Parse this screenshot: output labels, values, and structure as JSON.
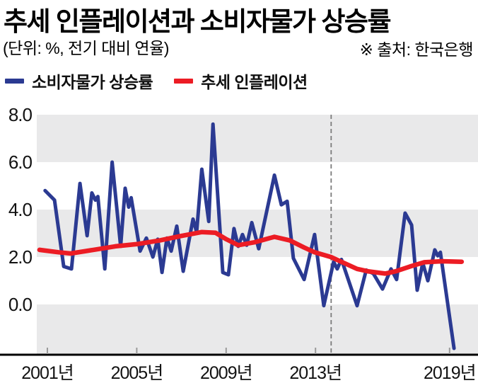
{
  "title": "추세 인플레이션과 소비자물가 상승률",
  "subtitle": "(단위: %, 전기 대비 연율)",
  "source": "※ 출처: 한국은행",
  "legend": [
    {
      "id": "cpi",
      "label": "소비자물가 상승률",
      "color": "#2b3a92"
    },
    {
      "id": "trend",
      "label": "추세 인플레이션",
      "color": "#ec1c24"
    }
  ],
  "chart_data": {
    "type": "line",
    "title": "추세 인플레이션과 소비자물가 상승률",
    "unit": "%",
    "note": "전기 대비 연율",
    "source": "한국은행",
    "x_range": [
      2000.6,
      2019.6
    ],
    "ylim": [
      -2.1,
      8.0
    ],
    "grid": "alternating horizontal bands",
    "legend_position": "top-left",
    "bands": [
      [
        8,
        6
      ],
      [
        4,
        2
      ],
      [
        0,
        -2.09
      ]
    ],
    "vline_year": 2013.7,
    "y_ticks": [
      {
        "value": 8,
        "label": "8.0"
      },
      {
        "value": 6,
        "label": "6.0"
      },
      {
        "value": 4,
        "label": "4.0"
      },
      {
        "value": 2,
        "label": "2.0"
      },
      {
        "value": 0,
        "label": "0.0"
      }
    ],
    "x_ticks": [
      {
        "year": 2001,
        "label": "2001년"
      },
      {
        "year": 2005,
        "label": "2005년"
      },
      {
        "year": 2009,
        "label": "2009년"
      },
      {
        "year": 2013,
        "label": "2013년"
      },
      {
        "year": 2019,
        "label": "2019년"
      }
    ],
    "colors": {
      "band": "#e9e9ea",
      "vline": "#7b7b7b",
      "axis": "#000000",
      "tick": "#9a9a9a"
    },
    "series": [
      {
        "id": "cpi",
        "name": "소비자물가 상승률",
        "color": "#2b3a92",
        "points": [
          [
            2000.9,
            4.8
          ],
          [
            2001.32,
            4.4
          ],
          [
            2001.73,
            1.6
          ],
          [
            2002.08,
            1.5
          ],
          [
            2002.46,
            5.1
          ],
          [
            2002.78,
            2.9
          ],
          [
            2002.99,
            4.7
          ],
          [
            2003.15,
            4.4
          ],
          [
            2003.26,
            4.55
          ],
          [
            2003.57,
            1.5
          ],
          [
            2003.9,
            6.0
          ],
          [
            2004.28,
            2.45
          ],
          [
            2004.48,
            4.9
          ],
          [
            2004.64,
            4.1
          ],
          [
            2004.75,
            4.5
          ],
          [
            2005.15,
            2.25
          ],
          [
            2005.43,
            2.8
          ],
          [
            2005.72,
            2.0
          ],
          [
            2005.94,
            2.75
          ],
          [
            2006.13,
            1.35
          ],
          [
            2006.35,
            2.8
          ],
          [
            2006.54,
            2.25
          ],
          [
            2006.79,
            3.3
          ],
          [
            2007.08,
            1.4
          ],
          [
            2007.52,
            3.6
          ],
          [
            2007.68,
            3.05
          ],
          [
            2007.91,
            5.7
          ],
          [
            2008.22,
            3.5
          ],
          [
            2008.41,
            7.6
          ],
          [
            2008.85,
            1.35
          ],
          [
            2009.1,
            1.25
          ],
          [
            2009.35,
            3.2
          ],
          [
            2009.54,
            2.45
          ],
          [
            2009.73,
            2.95
          ],
          [
            2009.92,
            2.5
          ],
          [
            2010.15,
            3.45
          ],
          [
            2010.46,
            2.35
          ],
          [
            2011.16,
            5.45
          ],
          [
            2011.47,
            4.2
          ],
          [
            2011.73,
            4.35
          ],
          [
            2012.01,
            1.95
          ],
          [
            2012.49,
            1.05
          ],
          [
            2012.96,
            2.95
          ],
          [
            2013.37,
            -0.05
          ],
          [
            2013.81,
            1.8
          ],
          [
            2013.97,
            1.5
          ],
          [
            2014.16,
            1.9
          ],
          [
            2014.86,
            -0.05
          ],
          [
            2015.27,
            1.45
          ],
          [
            2015.59,
            1.3
          ],
          [
            2016.0,
            0.65
          ],
          [
            2016.38,
            1.5
          ],
          [
            2016.63,
            1.05
          ],
          [
            2017.01,
            3.85
          ],
          [
            2017.3,
            3.35
          ],
          [
            2017.55,
            0.6
          ],
          [
            2017.8,
            1.75
          ],
          [
            2018.03,
            1.0
          ],
          [
            2018.34,
            2.3
          ],
          [
            2018.47,
            2.05
          ],
          [
            2018.59,
            2.2
          ],
          [
            2019.2,
            -1.85
          ]
        ]
      },
      {
        "id": "trend",
        "name": "추세 인플레이션",
        "color": "#ec1c24",
        "points": [
          [
            2000.65,
            2.3
          ],
          [
            2001.5,
            2.2
          ],
          [
            2002.04,
            2.15
          ],
          [
            2003.06,
            2.3
          ],
          [
            2004.04,
            2.45
          ],
          [
            2005.05,
            2.55
          ],
          [
            2006.03,
            2.7
          ],
          [
            2007.04,
            2.9
          ],
          [
            2007.9,
            3.05
          ],
          [
            2008.53,
            3.02
          ],
          [
            2009.01,
            2.75
          ],
          [
            2009.54,
            2.5
          ],
          [
            2010.27,
            2.62
          ],
          [
            2011.16,
            2.85
          ],
          [
            2011.85,
            2.7
          ],
          [
            2012.49,
            2.4
          ],
          [
            2012.96,
            2.2
          ],
          [
            2013.69,
            2.0
          ],
          [
            2014.39,
            1.7
          ],
          [
            2014.86,
            1.5
          ],
          [
            2015.33,
            1.4
          ],
          [
            2016.12,
            1.3
          ],
          [
            2016.6,
            1.4
          ],
          [
            2017.23,
            1.6
          ],
          [
            2017.87,
            1.78
          ],
          [
            2018.66,
            1.82
          ],
          [
            2019.54,
            1.8
          ]
        ]
      }
    ]
  }
}
